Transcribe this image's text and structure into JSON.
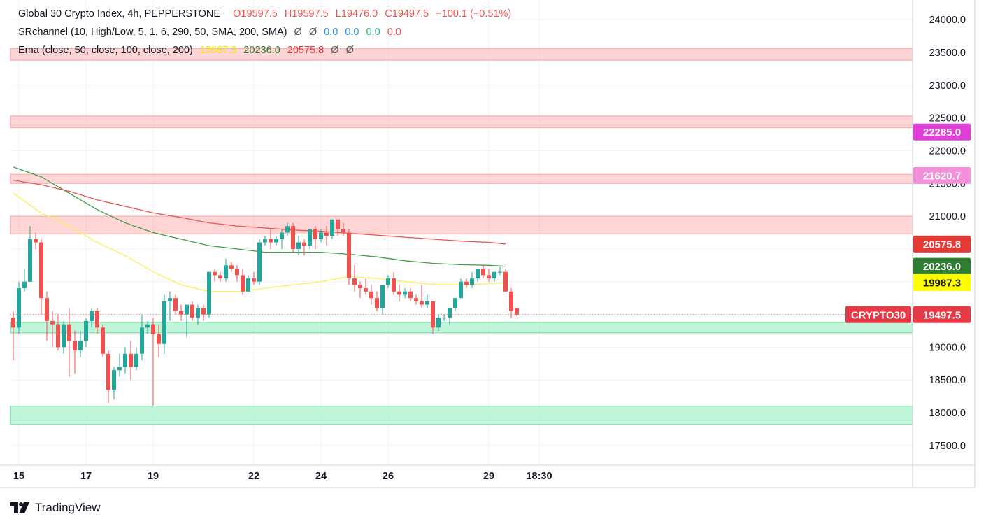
{
  "legend": {
    "title": "Global 30 Crypto Index, 4h, PEPPERSTONE",
    "open": "O19597.5",
    "high": "H19597.5",
    "low": "L19476.0",
    "close": "C19497.5",
    "change": "−100.1 (−0.51%)",
    "sr_label": "SRchannel (10, High/Low, 5, 1, 6, 290, 50, SMA, 200, SMA)",
    "sr_values": [
      "Ø",
      "Ø",
      "0.0",
      "0.0",
      "0.0",
      "0.0"
    ],
    "ema_label": "Ema (close, 50, close, 100, close, 200)",
    "ema_values": [
      "19987.3",
      "20236.0",
      "20575.8",
      "Ø",
      "Ø"
    ]
  },
  "branding": {
    "logo_text": "TradingView"
  },
  "colors": {
    "up": "#26a69a",
    "down": "#ef5350",
    "ema50": "#ffee58",
    "ema100": "#43a047",
    "ema200": "#ef5350",
    "resistance_fill": "rgba(255,160,160,0.45)",
    "resistance_edge": "#f7a6a6",
    "support_fill": "rgba(130,235,180,0.5)",
    "support_edge": "#6fd49b",
    "label_magenta": "#e040d8",
    "label_pink": "#f48fda"
  },
  "chart_data": {
    "type": "candlestick",
    "title": "Global 30 Crypto Index, 4h, PEPPERSTONE",
    "ylim": [
      17200,
      24300
    ],
    "y_ticks": [
      17500,
      18000,
      18500,
      19000,
      19500,
      20000,
      20500,
      21000,
      21500,
      22000,
      22500,
      23000,
      23500,
      24000
    ],
    "y_tick_labels": [
      "17500.0",
      "18000.0",
      "18500.0",
      "19000.0",
      "",
      "",
      "",
      "21000.0",
      "21500.0",
      "22000.0",
      "22500.0",
      "23000.0",
      "23500.0",
      "24000.0"
    ],
    "x_ticks": [
      {
        "bar": 1,
        "label": "15"
      },
      {
        "bar": 13,
        "label": "17"
      },
      {
        "bar": 25,
        "label": "19"
      },
      {
        "bar": 43,
        "label": "22"
      },
      {
        "bar": 55,
        "label": "24"
      },
      {
        "bar": 67,
        "label": "26"
      },
      {
        "bar": 85,
        "label": "29"
      },
      {
        "bar": 94,
        "label": "18:30"
      }
    ],
    "candles": [
      [
        19450,
        19550,
        18800,
        19300
      ],
      [
        19300,
        20000,
        19200,
        19900
      ],
      [
        19900,
        20200,
        19850,
        20000
      ],
      [
        20000,
        20850,
        20000,
        20650
      ],
      [
        20650,
        20750,
        20500,
        20600
      ],
      [
        20600,
        20650,
        19500,
        19750
      ],
      [
        19750,
        19850,
        19100,
        19400
      ],
      [
        19400,
        19550,
        19000,
        19350
      ],
      [
        19350,
        19500,
        18950,
        19000
      ],
      [
        19000,
        19400,
        18900,
        19350
      ],
      [
        19350,
        19600,
        18550,
        19100
      ],
      [
        19100,
        19250,
        18600,
        18950
      ],
      [
        18950,
        19250,
        18850,
        19100
      ],
      [
        19100,
        19450,
        19000,
        19400
      ],
      [
        19400,
        19600,
        19300,
        19550
      ],
      [
        19550,
        19600,
        19200,
        19300
      ],
      [
        19300,
        19350,
        18850,
        18900
      ],
      [
        18900,
        18950,
        18150,
        18350
      ],
      [
        18350,
        18700,
        18200,
        18650
      ],
      [
        18650,
        18900,
        18550,
        18700
      ],
      [
        18700,
        19000,
        18600,
        18900
      ],
      [
        18900,
        19100,
        18500,
        18700
      ],
      [
        18700,
        19000,
        18650,
        18900
      ],
      [
        18900,
        19500,
        18800,
        19300
      ],
      [
        19300,
        19400,
        19200,
        19350
      ],
      [
        19350,
        19450,
        18100,
        19200
      ],
      [
        19200,
        19350,
        18850,
        19050
      ],
      [
        19050,
        19800,
        18900,
        19700
      ],
      [
        19700,
        19850,
        19400,
        19750
      ],
      [
        19750,
        19800,
        19500,
        19550
      ],
      [
        19550,
        19650,
        19400,
        19500
      ],
      [
        19500,
        19600,
        19150,
        19650
      ],
      [
        19650,
        19700,
        19400,
        19450
      ],
      [
        19450,
        19650,
        19350,
        19600
      ],
      [
        19600,
        19650,
        19400,
        19500
      ],
      [
        19500,
        20150,
        19450,
        20150
      ],
      [
        20150,
        20200,
        20000,
        20100
      ],
      [
        20100,
        20150,
        20000,
        20050
      ],
      [
        20050,
        20350,
        20000,
        20250
      ],
      [
        20250,
        20300,
        20150,
        20200
      ],
      [
        20200,
        20250,
        20000,
        20100
      ],
      [
        20100,
        20200,
        19800,
        19850
      ],
      [
        19850,
        20100,
        19850,
        20050
      ],
      [
        20050,
        20150,
        19950,
        20000
      ],
      [
        20000,
        20650,
        19950,
        20600
      ],
      [
        20600,
        20700,
        20550,
        20650
      ],
      [
        20650,
        20800,
        20500,
        20600
      ],
      [
        20600,
        20700,
        20550,
        20650
      ],
      [
        20650,
        20800,
        20500,
        20750
      ],
      [
        20750,
        20900,
        20700,
        20850
      ],
      [
        20850,
        20900,
        20450,
        20500
      ],
      [
        20500,
        20700,
        20400,
        20600
      ],
      [
        20600,
        20650,
        20400,
        20550
      ],
      [
        20550,
        20800,
        20500,
        20800
      ],
      [
        20800,
        20850,
        20500,
        20650
      ],
      [
        20650,
        20800,
        20600,
        20750
      ],
      [
        20750,
        20850,
        20550,
        20700
      ],
      [
        20700,
        20950,
        20650,
        20950
      ],
      [
        20950,
        20950,
        20700,
        20800
      ],
      [
        20800,
        20900,
        20700,
        20750
      ],
      [
        20750,
        20800,
        19950,
        20050
      ],
      [
        20050,
        20250,
        19850,
        19950
      ],
      [
        19950,
        20000,
        19750,
        19900
      ],
      [
        19900,
        20050,
        19800,
        19850
      ],
      [
        19850,
        19950,
        19650,
        19750
      ],
      [
        19750,
        19850,
        19550,
        19600
      ],
      [
        19600,
        19950,
        19500,
        19950
      ],
      [
        19950,
        20100,
        19900,
        20050
      ],
      [
        20050,
        20150,
        19800,
        19850
      ],
      [
        19850,
        19950,
        19700,
        19800
      ],
      [
        19800,
        19900,
        19750,
        19850
      ],
      [
        19850,
        19900,
        19700,
        19750
      ],
      [
        19750,
        19800,
        19650,
        19700
      ],
      [
        19700,
        19950,
        19600,
        19650
      ],
      [
        19650,
        19800,
        19600,
        19700
      ],
      [
        19700,
        19700,
        19200,
        19300
      ],
      [
        19300,
        19500,
        19250,
        19450
      ],
      [
        19450,
        19500,
        19400,
        19450
      ],
      [
        19450,
        19550,
        19350,
        19600
      ],
      [
        19600,
        19750,
        19550,
        19750
      ],
      [
        19750,
        20050,
        19750,
        20000
      ],
      [
        20000,
        20050,
        19900,
        19950
      ],
      [
        19950,
        20150,
        19900,
        20050
      ],
      [
        20050,
        20200,
        20000,
        20200
      ],
      [
        20200,
        20250,
        20050,
        20100
      ],
      [
        20100,
        20200,
        20000,
        20050
      ],
      [
        20050,
        20150,
        20000,
        20150
      ],
      [
        20150,
        20250,
        20100,
        20150
      ],
      [
        20150,
        20200,
        19850,
        19850
      ],
      [
        19850,
        19900,
        19450,
        19550
      ],
      [
        19597.5,
        19597.5,
        19476,
        19497.5
      ]
    ],
    "series": [
      {
        "name": "Ema 50",
        "role": "ema50",
        "x": [
          0,
          5,
          10,
          15,
          20,
          25,
          30,
          35,
          40,
          45,
          50,
          55,
          60,
          65,
          70,
          75,
          80,
          85,
          88
        ],
        "values": [
          21350,
          21050,
          20850,
          20600,
          20400,
          20150,
          19950,
          19850,
          19850,
          19900,
          19950,
          20000,
          20080,
          20050,
          20000,
          19960,
          19950,
          19970,
          19987.3
        ]
      },
      {
        "name": "Ema 100",
        "role": "ema100",
        "x": [
          0,
          5,
          10,
          15,
          20,
          25,
          30,
          35,
          40,
          45,
          50,
          55,
          60,
          65,
          70,
          75,
          80,
          85,
          88
        ],
        "values": [
          21750,
          21600,
          21350,
          21100,
          20900,
          20750,
          20650,
          20550,
          20500,
          20450,
          20450,
          20450,
          20420,
          20380,
          20320,
          20280,
          20260,
          20250,
          20236
        ]
      },
      {
        "name": "Ema 200",
        "role": "ema200",
        "x": [
          0,
          5,
          10,
          15,
          20,
          25,
          30,
          35,
          40,
          45,
          50,
          55,
          60,
          65,
          70,
          75,
          80,
          85,
          88
        ],
        "values": [
          21550,
          21480,
          21380,
          21250,
          21150,
          21050,
          20980,
          20900,
          20850,
          20820,
          20790,
          20770,
          20740,
          20710,
          20680,
          20650,
          20620,
          20600,
          20575.8
        ]
      }
    ],
    "zones": [
      {
        "kind": "resistance",
        "from": 23380,
        "to": 23560
      },
      {
        "kind": "resistance",
        "from": 22350,
        "to": 22530
      },
      {
        "kind": "resistance",
        "from": 21500,
        "to": 21640
      },
      {
        "kind": "resistance",
        "from": 20730,
        "to": 21000
      },
      {
        "kind": "support",
        "from": 19220,
        "to": 19380
      },
      {
        "kind": "support",
        "from": 17820,
        "to": 18100
      }
    ],
    "price_line": 19497.5,
    "price_labels": [
      {
        "value": 22285.0,
        "text": "22285.0",
        "role": "magenta"
      },
      {
        "value": 21620.7,
        "text": "21620.7",
        "role": "pink"
      },
      {
        "value": 20575.8,
        "text": "20575.8",
        "role": "ema200"
      },
      {
        "value": 20236.0,
        "text": "20236.0",
        "role": "ema100"
      },
      {
        "value": 19987.3,
        "text": "19987.3",
        "role": "ema50"
      },
      {
        "value": 19497.5,
        "text": "19497.5",
        "role": "last"
      }
    ],
    "symbol_label": "CRYPTO30"
  }
}
